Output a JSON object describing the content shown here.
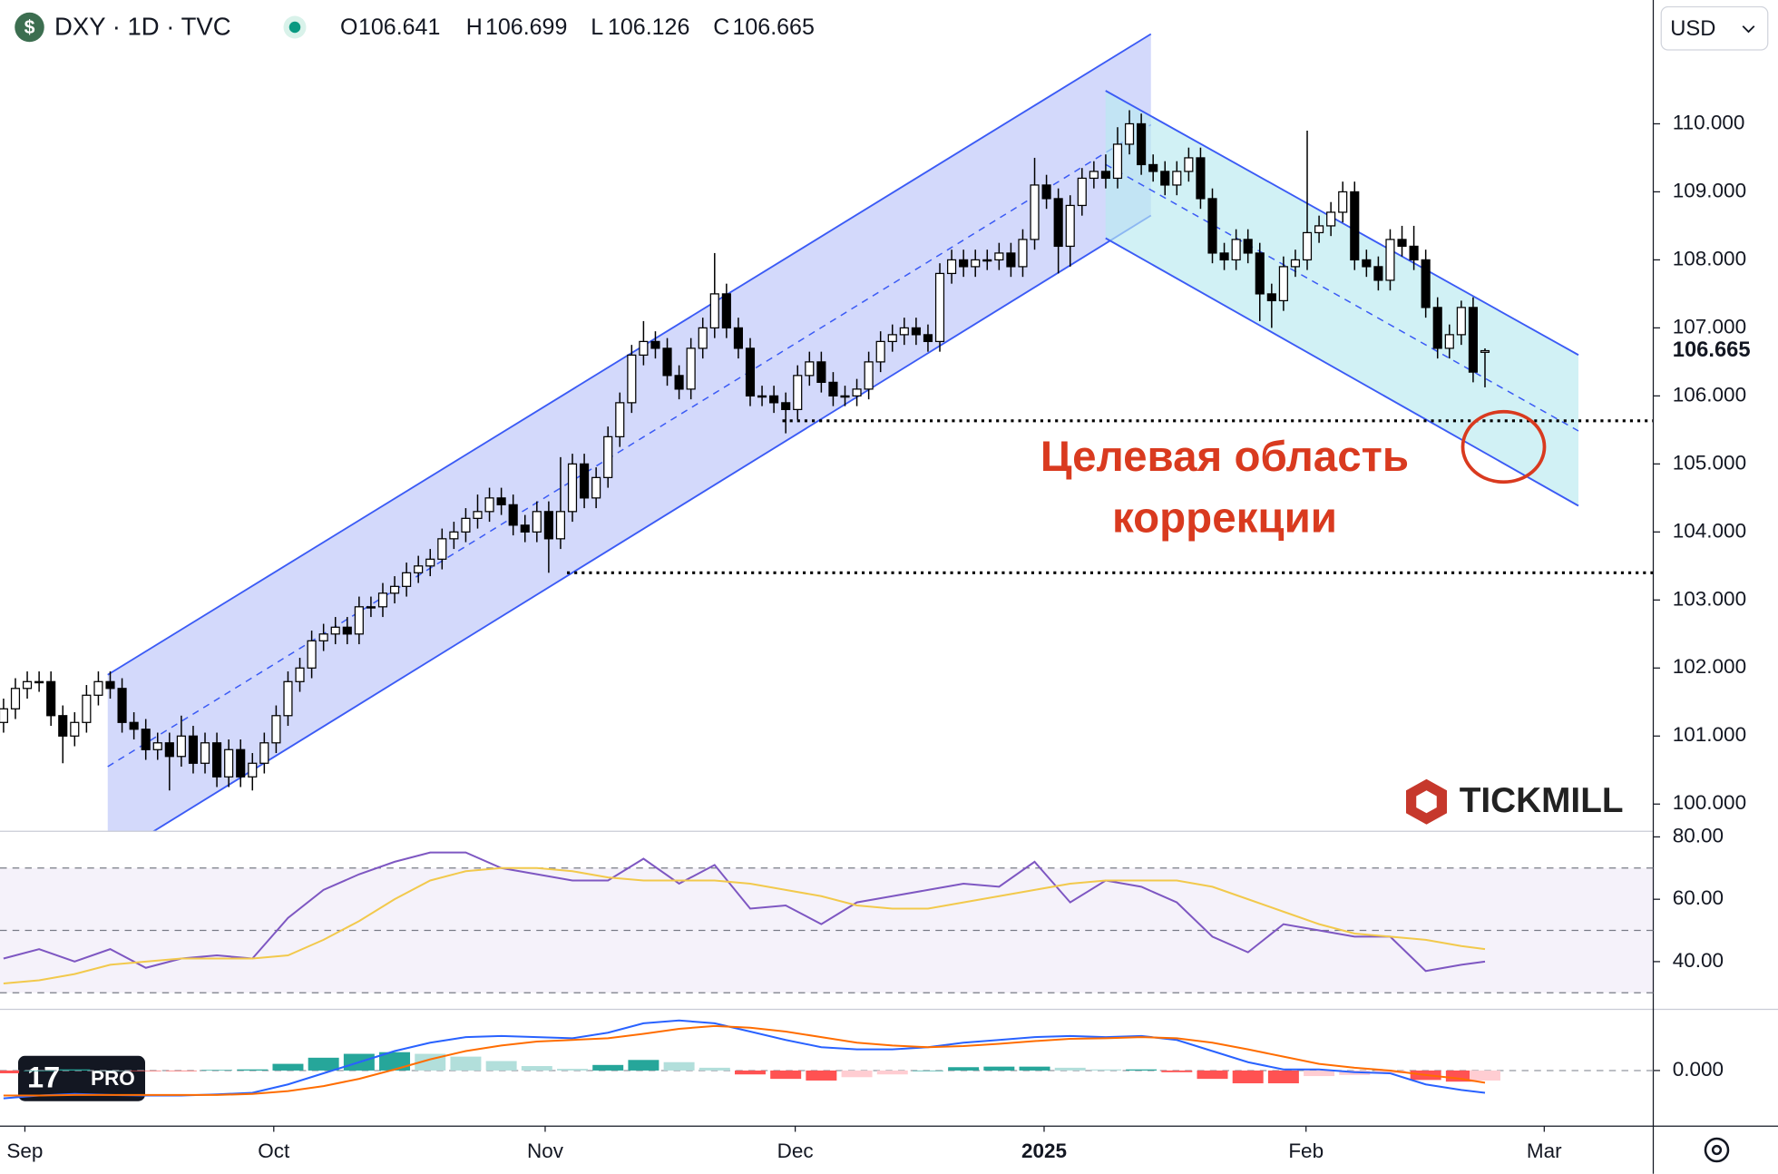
{
  "chart_data": [
    {
      "type": "candlestick",
      "title": "DXY · 1D · TVC",
      "ohlc_labels": [
        "O",
        "H",
        "L",
        "C"
      ],
      "currency": "USD",
      "watermark": "TICKMILL",
      "badge": "PRO",
      "annotation": [
        "Целевая область",
        "коррекции"
      ],
      "up_color": "#ffffff",
      "down_color": "#000000",
      "xlim": [
        -0.3,
        139.2
      ],
      "ylim": [
        99.6,
        111.82
      ],
      "xticks": [
        {
          "value": 1.8,
          "label": "Sep"
        },
        {
          "value": 22.8,
          "label": "Oct"
        },
        {
          "value": 45.7,
          "label": "Nov"
        },
        {
          "value": 66.8,
          "label": "Dec"
        },
        {
          "value": 87.8,
          "label": "2025"
        },
        {
          "value": 109.9,
          "label": "Feb"
        },
        {
          "value": 130,
          "label": "Mar"
        }
      ],
      "yticks": [
        {
          "value": 100,
          "label": "100.000"
        },
        {
          "value": 101,
          "label": "101.000"
        },
        {
          "value": 102,
          "label": "102.000"
        },
        {
          "value": 103,
          "label": "103.000"
        },
        {
          "value": 104,
          "label": "104.000"
        },
        {
          "value": 105,
          "label": "105.000"
        },
        {
          "value": 106,
          "label": "106.000"
        },
        {
          "value": 107,
          "label": "107.000"
        },
        {
          "value": 108,
          "label": "108.000"
        },
        {
          "value": 109,
          "label": "109.000"
        },
        {
          "value": 110,
          "label": "110.000"
        }
      ],
      "open": [
        101.2,
        101.4,
        101.7,
        101.8,
        101.8,
        101.3,
        101.0,
        101.2,
        101.6,
        101.8,
        101.7,
        101.2,
        101.1,
        100.8,
        100.9,
        100.7,
        101.0,
        100.6,
        100.9,
        100.4,
        100.8,
        100.4,
        100.6,
        100.9,
        101.3,
        101.8,
        102.0,
        102.4,
        102.5,
        102.6,
        102.5,
        102.9,
        102.9,
        103.1,
        103.2,
        103.4,
        103.5,
        103.6,
        103.9,
        104.0,
        104.2,
        104.3,
        104.5,
        104.4,
        104.1,
        104.0,
        104.3,
        103.9,
        104.3,
        105.0,
        104.5,
        104.8,
        105.4,
        105.9,
        106.6,
        106.8,
        106.7,
        106.3,
        106.1,
        106.7,
        107.0,
        107.5,
        107.0,
        106.7,
        106.0,
        106.0,
        105.9,
        105.8,
        106.3,
        106.5,
        106.2,
        106.0,
        106.0,
        106.1,
        106.5,
        106.8,
        106.9,
        107.0,
        106.9,
        106.8,
        107.8,
        108.0,
        107.9,
        108.0,
        108.0,
        108.1,
        107.9,
        108.3,
        109.1,
        108.9,
        108.2,
        108.8,
        109.2,
        109.3,
        109.2,
        109.7,
        110.0,
        109.4,
        109.3,
        109.1,
        109.3,
        109.5,
        108.9,
        108.1,
        108.0,
        108.3,
        108.1,
        107.5,
        107.4,
        107.9,
        108.0,
        108.4,
        108.5,
        108.7,
        109.0,
        108.0,
        107.9,
        107.7,
        108.3,
        108.2,
        108.0,
        107.3,
        106.7,
        106.9,
        107.3,
        106.641
      ],
      "high": [
        101.55,
        101.85,
        101.95,
        101.95,
        101.95,
        101.45,
        101.35,
        101.75,
        101.95,
        101.95,
        101.85,
        101.35,
        101.25,
        101.05,
        101.05,
        101.3,
        101.15,
        101.05,
        101.05,
        100.95,
        100.95,
        100.75,
        101.05,
        101.45,
        101.95,
        102.15,
        102.55,
        102.65,
        102.75,
        102.75,
        103.05,
        103.05,
        103.25,
        103.35,
        103.55,
        103.65,
        103.75,
        104.05,
        104.15,
        104.35,
        104.55,
        104.65,
        104.65,
        104.55,
        104.25,
        104.45,
        104.45,
        105.1,
        105.15,
        105.15,
        104.95,
        105.55,
        106.05,
        106.75,
        107.1,
        106.95,
        106.85,
        106.45,
        106.85,
        107.15,
        108.1,
        107.65,
        107.15,
        106.85,
        106.15,
        106.15,
        106.05,
        106.45,
        106.65,
        106.65,
        106.35,
        106.15,
        106.25,
        106.65,
        106.95,
        107.05,
        107.15,
        107.15,
        107.05,
        107.95,
        108.15,
        108.15,
        108.15,
        108.15,
        108.25,
        108.25,
        108.45,
        109.5,
        109.25,
        109.05,
        108.95,
        109.35,
        109.45,
        109.55,
        109.95,
        110.2,
        110.15,
        109.55,
        109.45,
        109.45,
        109.65,
        109.65,
        109.05,
        108.25,
        108.45,
        108.45,
        108.25,
        107.65,
        108.05,
        108.15,
        109.9,
        108.65,
        108.85,
        109.15,
        109.15,
        108.15,
        108.05,
        108.45,
        108.5,
        108.5,
        108.15,
        107.45,
        107.05,
        107.4,
        107.45,
        106.699
      ],
      "low": [
        101.05,
        101.25,
        101.55,
        101.65,
        101.15,
        100.6,
        100.85,
        101.05,
        101.45,
        101.55,
        101.05,
        100.95,
        100.65,
        100.65,
        100.2,
        100.55,
        100.45,
        100.45,
        100.25,
        100.25,
        100.25,
        100.2,
        100.45,
        100.75,
        101.15,
        101.65,
        101.85,
        102.25,
        102.35,
        102.35,
        102.35,
        102.75,
        102.75,
        102.95,
        103.05,
        103.25,
        103.35,
        103.45,
        103.75,
        103.85,
        104.05,
        104.15,
        104.25,
        103.95,
        103.85,
        103.85,
        103.4,
        103.75,
        104.15,
        104.35,
        104.35,
        104.65,
        105.25,
        105.75,
        106.45,
        106.55,
        106.15,
        105.95,
        105.95,
        106.55,
        106.85,
        106.85,
        106.55,
        105.85,
        105.85,
        105.75,
        105.45,
        105.65,
        106.15,
        106.05,
        105.85,
        105.85,
        105.85,
        105.95,
        106.35,
        106.65,
        106.75,
        106.75,
        106.65,
        106.65,
        107.65,
        107.75,
        107.75,
        107.85,
        107.85,
        107.75,
        107.75,
        108.15,
        108.75,
        107.8,
        107.9,
        108.65,
        109.05,
        109.05,
        109.05,
        109.55,
        109.25,
        109.15,
        108.95,
        108.95,
        109.15,
        108.75,
        107.95,
        107.85,
        107.85,
        107.95,
        107.1,
        107.0,
        107.25,
        107.75,
        107.85,
        108.25,
        108.35,
        108.55,
        107.85,
        107.75,
        107.55,
        107.55,
        108.05,
        107.85,
        107.15,
        106.55,
        106.55,
        106.75,
        106.2,
        106.126
      ],
      "close": [
        101.4,
        101.7,
        101.8,
        101.8,
        101.3,
        101.0,
        101.2,
        101.6,
        101.8,
        101.7,
        101.2,
        101.1,
        100.8,
        100.9,
        100.7,
        101.0,
        100.6,
        100.9,
        100.4,
        100.8,
        100.4,
        100.6,
        100.9,
        101.3,
        101.8,
        102.0,
        102.4,
        102.5,
        102.6,
        102.5,
        102.9,
        102.9,
        103.1,
        103.2,
        103.4,
        103.5,
        103.6,
        103.9,
        104.0,
        104.2,
        104.3,
        104.5,
        104.4,
        104.1,
        104.0,
        104.3,
        103.9,
        104.3,
        105.0,
        104.5,
        104.8,
        105.4,
        105.9,
        106.6,
        106.8,
        106.7,
        106.3,
        106.1,
        106.7,
        107.0,
        107.5,
        107.0,
        106.7,
        106.0,
        106.0,
        105.9,
        105.8,
        106.3,
        106.5,
        106.2,
        106.0,
        106.0,
        106.1,
        106.5,
        106.8,
        106.9,
        107.0,
        106.9,
        106.8,
        107.8,
        108.0,
        107.9,
        108.0,
        108.0,
        108.1,
        107.9,
        108.3,
        109.1,
        108.9,
        108.2,
        108.8,
        109.2,
        109.3,
        109.2,
        109.7,
        110.0,
        109.4,
        109.3,
        109.1,
        109.3,
        109.5,
        108.9,
        108.1,
        108.0,
        108.3,
        108.1,
        107.5,
        107.4,
        107.9,
        108.0,
        108.4,
        108.5,
        108.7,
        109.0,
        108.0,
        107.9,
        107.7,
        108.3,
        108.2,
        108.0,
        107.3,
        106.7,
        106.9,
        107.3,
        106.35,
        106.665
      ]
    },
    {
      "type": "line",
      "xlim": [
        -0.3,
        139.2
      ],
      "ylim": [
        24.7,
        81.8
      ],
      "levels": [
        30,
        50,
        70
      ],
      "yticks": [
        {
          "value": 40,
          "label": "40.00"
        },
        {
          "value": 60,
          "label": "60.00"
        },
        {
          "value": 80,
          "label": "80.00"
        }
      ],
      "x": [
        0,
        3,
        6,
        9,
        12,
        15,
        18,
        21,
        24,
        27,
        30,
        33,
        36,
        39,
        42,
        45,
        48,
        51,
        54,
        57,
        60,
        63,
        66,
        69,
        72,
        75,
        78,
        81,
        84,
        87,
        90,
        93,
        96,
        99,
        102,
        105,
        108,
        111,
        114,
        117,
        120,
        123,
        125
      ],
      "series": [
        {
          "color": "#7e57c2",
          "values": [
            41,
            44,
            40,
            44,
            38,
            41,
            42,
            41,
            54,
            63,
            68,
            72,
            75,
            75,
            70,
            68,
            66,
            66,
            73,
            65,
            71,
            57,
            58,
            52,
            59,
            61,
            63,
            65,
            64,
            72,
            59,
            66,
            64,
            59,
            48,
            43,
            52,
            50,
            48,
            48,
            37,
            39,
            40
          ]
        },
        {
          "color": "#f2c94c",
          "values": [
            33,
            34,
            36,
            39,
            40,
            41,
            41,
            41,
            42,
            47,
            53,
            60,
            66,
            69,
            70,
            70,
            69,
            67,
            66,
            66,
            66,
            65,
            63,
            61,
            58,
            57,
            57,
            59,
            61,
            63,
            65,
            66,
            66,
            66,
            64,
            60,
            56,
            52,
            49,
            48,
            47,
            45,
            44
          ]
        }
      ]
    },
    {
      "type": "macd",
      "xlim": [
        -0.3,
        139.2
      ],
      "ylim": [
        -1.0,
        1.1
      ],
      "yticks": [
        {
          "value": 0,
          "label": "0.000"
        }
      ],
      "x": [
        0,
        3,
        6,
        9,
        12,
        15,
        18,
        21,
        24,
        27,
        30,
        33,
        36,
        39,
        42,
        45,
        48,
        51,
        54,
        57,
        60,
        63,
        66,
        69,
        72,
        75,
        78,
        81,
        84,
        87,
        90,
        93,
        96,
        99,
        102,
        105,
        108,
        111,
        114,
        117,
        120,
        123,
        125
      ],
      "histogram": [
        -0.05,
        0,
        0.02,
        0,
        -0.01,
        -0.01,
        0.01,
        0.02,
        0.12,
        0.23,
        0.3,
        0.33,
        0.3,
        0.25,
        0.17,
        0.08,
        0.03,
        0.1,
        0.19,
        0.15,
        0.05,
        -0.07,
        -0.15,
        -0.18,
        -0.12,
        -0.07,
        0,
        0.06,
        0.07,
        0.07,
        0.05,
        0.02,
        0.02,
        -0.03,
        -0.15,
        -0.23,
        -0.23,
        -0.1,
        -0.08,
        -0.05,
        -0.17,
        -0.2,
        -0.18
      ],
      "series": [
        {
          "color": "#2962ff",
          "values": [
            -0.5,
            -0.45,
            -0.42,
            -0.44,
            -0.45,
            -0.45,
            -0.43,
            -0.4,
            -0.25,
            -0.05,
            0.15,
            0.35,
            0.5,
            0.6,
            0.62,
            0.6,
            0.58,
            0.68,
            0.85,
            0.9,
            0.85,
            0.7,
            0.55,
            0.42,
            0.38,
            0.38,
            0.42,
            0.5,
            0.55,
            0.6,
            0.62,
            0.6,
            0.62,
            0.55,
            0.35,
            0.15,
            0.02,
            0.02,
            -0.03,
            -0.05,
            -0.25,
            -0.35,
            -0.4
          ]
        },
        {
          "color": "#ff6d00",
          "values": [
            -0.45,
            -0.45,
            -0.44,
            -0.44,
            -0.44,
            -0.44,
            -0.44,
            -0.42,
            -0.37,
            -0.28,
            -0.15,
            0.02,
            0.2,
            0.35,
            0.45,
            0.52,
            0.55,
            0.58,
            0.66,
            0.75,
            0.8,
            0.77,
            0.7,
            0.6,
            0.5,
            0.45,
            0.42,
            0.44,
            0.48,
            0.53,
            0.57,
            0.58,
            0.6,
            0.58,
            0.5,
            0.38,
            0.25,
            0.12,
            0.05,
            0.0,
            -0.08,
            -0.15,
            -0.22
          ]
        }
      ]
    }
  ]
}
